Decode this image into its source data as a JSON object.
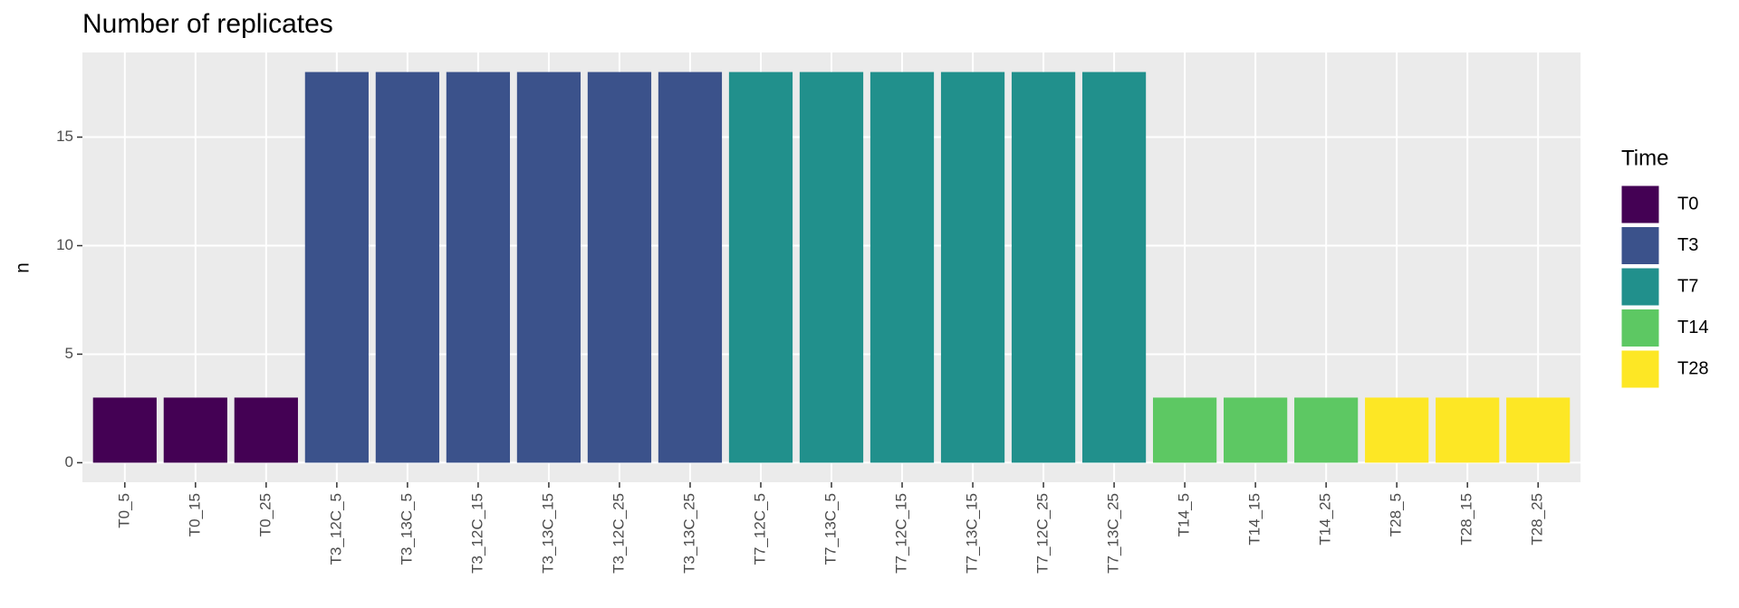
{
  "chart_data": {
    "type": "bar",
    "title": "Number of replicates",
    "y_label": "n",
    "legend_title": "Time",
    "categories": [
      "T0_5",
      "T0_15",
      "T0_25",
      "T3_12C_5",
      "T3_13C_5",
      "T3_12C_15",
      "T3_13C_15",
      "T3_12C_25",
      "T3_13C_25",
      "T7_12C_5",
      "T7_13C_5",
      "T7_12C_15",
      "T7_13C_15",
      "T7_12C_25",
      "T7_13C_25",
      "T14_5",
      "T14_15",
      "T14_25",
      "T28_5",
      "T28_15",
      "T28_25"
    ],
    "series": [
      {
        "name": "T0",
        "color": "#440154",
        "values": [
          3,
          3,
          3,
          null,
          null,
          null,
          null,
          null,
          null,
          null,
          null,
          null,
          null,
          null,
          null,
          null,
          null,
          null,
          null,
          null,
          null
        ]
      },
      {
        "name": "T3",
        "color": "#3B528B",
        "values": [
          null,
          null,
          null,
          18,
          18,
          18,
          18,
          18,
          18,
          null,
          null,
          null,
          null,
          null,
          null,
          null,
          null,
          null,
          null,
          null,
          null
        ]
      },
      {
        "name": "T7",
        "color": "#21908C",
        "values": [
          null,
          null,
          null,
          null,
          null,
          null,
          null,
          null,
          null,
          18,
          18,
          18,
          18,
          18,
          18,
          null,
          null,
          null,
          null,
          null,
          null
        ]
      },
      {
        "name": "T14",
        "color": "#5DC863",
        "values": [
          null,
          null,
          null,
          null,
          null,
          null,
          null,
          null,
          null,
          null,
          null,
          null,
          null,
          null,
          null,
          3,
          3,
          3,
          null,
          null,
          null
        ]
      },
      {
        "name": "T28",
        "color": "#FDE725",
        "values": [
          null,
          null,
          null,
          null,
          null,
          null,
          null,
          null,
          null,
          null,
          null,
          null,
          null,
          null,
          null,
          null,
          null,
          null,
          3,
          3,
          3
        ]
      }
    ],
    "ylim": [
      -0.9,
      18.9
    ],
    "yticks": [
      0,
      5,
      10,
      15
    ],
    "grid": true,
    "legend_position": "right"
  }
}
